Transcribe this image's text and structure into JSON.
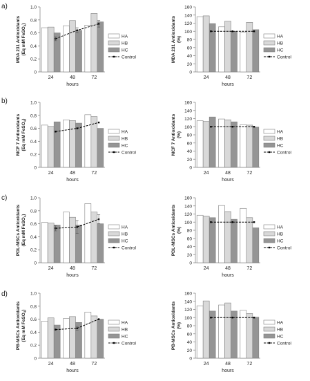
{
  "row_labels": [
    "a)",
    "b)",
    "c)",
    "d)"
  ],
  "colors": {
    "HA": "#ffffff",
    "HB": "#d9d9d9",
    "HC": "#959595",
    "control": "#000000",
    "bar_stroke": "#7f7f7f",
    "axis": "#888888"
  },
  "chart_data": [
    {
      "type": "bar",
      "panel": "a-left",
      "ylabel": "MDA 231 Antioxidants (Eq mM FeSO4)",
      "xlabel": "hours",
      "categories": [
        "24",
        "48",
        "72"
      ],
      "ylim": [
        0,
        1.0
      ],
      "yticks": [
        "0",
        "0.2",
        "0.4",
        "0.6",
        "0.8",
        "1.0"
      ],
      "series": [
        {
          "name": "HA",
          "values": [
            0.68,
            0.71,
            0.72
          ]
        },
        {
          "name": "HB",
          "values": [
            0.69,
            0.79,
            0.9
          ]
        },
        {
          "name": "HC",
          "values": [
            0.6,
            0.64,
            0.77
          ]
        }
      ],
      "control": {
        "name": "Control",
        "values": [
          0.51,
          0.64,
          0.74
        ],
        "errors": [
          0.03,
          0.04,
          0.05
        ]
      },
      "legend": [
        "HA",
        "HB",
        "HC",
        "Control"
      ],
      "legend_position": "right"
    },
    {
      "type": "bar",
      "panel": "a-right",
      "ylabel": "MDA 231 Antioxidants (%)",
      "xlabel": "hours",
      "categories": [
        "24",
        "48",
        "72"
      ],
      "ylim": [
        0,
        160
      ],
      "yticks": [
        "0",
        "20",
        "40",
        "60",
        "80",
        "100",
        "120",
        "140",
        "160"
      ],
      "series": [
        {
          "name": "HA",
          "values": [
            136,
            111,
            98
          ]
        },
        {
          "name": "HB",
          "values": [
            138,
            125,
            122
          ]
        },
        {
          "name": "HC",
          "values": [
            119,
            100,
            104
          ]
        }
      ],
      "control": {
        "name": "Control",
        "values": [
          100,
          100,
          100
        ],
        "errors": []
      },
      "legend": [
        "HA",
        "HB",
        "HC",
        "Control"
      ],
      "legend_position": "right"
    },
    {
      "type": "bar",
      "panel": "b-left",
      "ylabel": "MCF 7 Antioxidants (Eq mM FeSO4)",
      "xlabel": "hours",
      "categories": [
        "24",
        "48",
        "72"
      ],
      "ylim": [
        0,
        1.0
      ],
      "yticks": [
        "0",
        "0.2",
        "0.4",
        "0.6",
        "0.8",
        "1.0"
      ],
      "series": [
        {
          "name": "HA",
          "values": [
            0.65,
            0.73,
            0.81
          ]
        },
        {
          "name": "HB",
          "values": [
            0.63,
            0.72,
            0.78
          ]
        },
        {
          "name": "HC",
          "values": [
            0.7,
            0.68,
            0.6
          ]
        }
      ],
      "control": {
        "name": "Control",
        "values": [
          0.55,
          0.6,
          0.69
        ],
        "errors": []
      },
      "legend": [
        "HA",
        "HB",
        "HC",
        "Control"
      ],
      "legend_position": "right"
    },
    {
      "type": "bar",
      "panel": "b-right",
      "ylabel": "MCF 7 Antioxidants (%)",
      "xlabel": "hours",
      "categories": [
        "24",
        "48",
        "72"
      ],
      "ylim": [
        0,
        160
      ],
      "yticks": [
        "0",
        "20",
        "40",
        "60",
        "80",
        "100",
        "120",
        "140",
        "160"
      ],
      "series": [
        {
          "name": "HA",
          "values": [
            115,
            119,
            105
          ]
        },
        {
          "name": "HB",
          "values": [
            113,
            117,
            104
          ]
        },
        {
          "name": "HC",
          "values": [
            124,
            112,
            99
          ]
        }
      ],
      "control": {
        "name": "Control",
        "values": [
          100,
          100,
          100
        ],
        "errors": []
      },
      "legend": [
        "HA",
        "HB",
        "HC",
        "Control"
      ],
      "legend_position": "right"
    },
    {
      "type": "bar",
      "panel": "c-left",
      "ylabel": "PDL-MSCs Antioxidants (Eq mM FeSO4)",
      "xlabel": "hours",
      "categories": [
        "24",
        "48",
        "72"
      ],
      "ylim": [
        0,
        1.0
      ],
      "yticks": [
        "0",
        "0.2",
        "0.4",
        "0.6",
        "0.8",
        "1.0"
      ],
      "series": [
        {
          "name": "HA",
          "values": [
            0.62,
            0.78,
            0.91
          ]
        },
        {
          "name": "HB",
          "values": [
            0.61,
            0.7,
            0.78
          ]
        },
        {
          "name": "HC",
          "values": [
            0.58,
            0.58,
            0.6
          ]
        }
      ],
      "control": {
        "name": "Control",
        "values": [
          0.53,
          0.55,
          0.67
        ],
        "errors": [
          0.04,
          0.1,
          0.07
        ]
      },
      "legend": [
        "HA",
        "HB",
        "HC",
        "Control"
      ],
      "legend_position": "right"
    },
    {
      "type": "bar",
      "panel": "c-right",
      "ylabel": "PDL-MSCs Antioxidants (%)",
      "xlabel": "hours",
      "categories": [
        "24",
        "48",
        "72"
      ],
      "ylim": [
        0,
        160
      ],
      "yticks": [
        "0",
        "20",
        "40",
        "60",
        "80",
        "100",
        "120",
        "140",
        "160"
      ],
      "series": [
        {
          "name": "HA",
          "values": [
            117,
            141,
            134
          ]
        },
        {
          "name": "HB",
          "values": [
            115,
            126,
            111
          ]
        },
        {
          "name": "HC",
          "values": [
            111,
            107,
            86
          ]
        }
      ],
      "control": {
        "name": "Control",
        "values": [
          100,
          100,
          100
        ],
        "errors": []
      },
      "legend": [
        "HA",
        "HB",
        "HC",
        "Control"
      ],
      "legend_position": "right"
    },
    {
      "type": "bar",
      "panel": "d-left",
      "ylabel": "PB-MSCs Antioxidants (Eq mM FeSO4)",
      "xlabel": "hours",
      "categories": [
        "24",
        "48",
        "72"
      ],
      "ylim": [
        0,
        1.0
      ],
      "yticks": [
        "0",
        "0.2",
        "0.4",
        "0.6",
        "0.8",
        "1.0"
      ],
      "series": [
        {
          "name": "HA",
          "values": [
            0.57,
            0.61,
            0.71
          ]
        },
        {
          "name": "HB",
          "values": [
            0.62,
            0.64,
            0.65
          ]
        },
        {
          "name": "HC",
          "values": [
            0.51,
            0.55,
            0.6
          ]
        }
      ],
      "control": {
        "name": "Control",
        "values": [
          0.44,
          0.46,
          0.6
        ],
        "errors": [
          0,
          0.03,
          0
        ]
      },
      "legend": [
        "HA",
        "HB",
        "HC",
        "Control"
      ],
      "legend_position": "right"
    },
    {
      "type": "bar",
      "panel": "d-right",
      "ylabel": "PB-MSCs Antioxidants (%)",
      "xlabel": "hours",
      "categories": [
        "24",
        "48",
        "72"
      ],
      "ylim": [
        0,
        160
      ],
      "yticks": [
        "0",
        "20",
        "40",
        "60",
        "80",
        "100",
        "120",
        "140",
        "160"
      ],
      "series": [
        {
          "name": "HA",
          "values": [
            129,
            131,
            118
          ]
        },
        {
          "name": "HB",
          "values": [
            141,
            136,
            110
          ]
        },
        {
          "name": "HC",
          "values": [
            116,
            116,
            101
          ]
        }
      ],
      "control": {
        "name": "Control",
        "values": [
          100,
          100,
          100
        ],
        "errors": []
      },
      "legend": [
        "HA",
        "HB",
        "HC",
        "Control"
      ],
      "legend_position": "right"
    }
  ]
}
